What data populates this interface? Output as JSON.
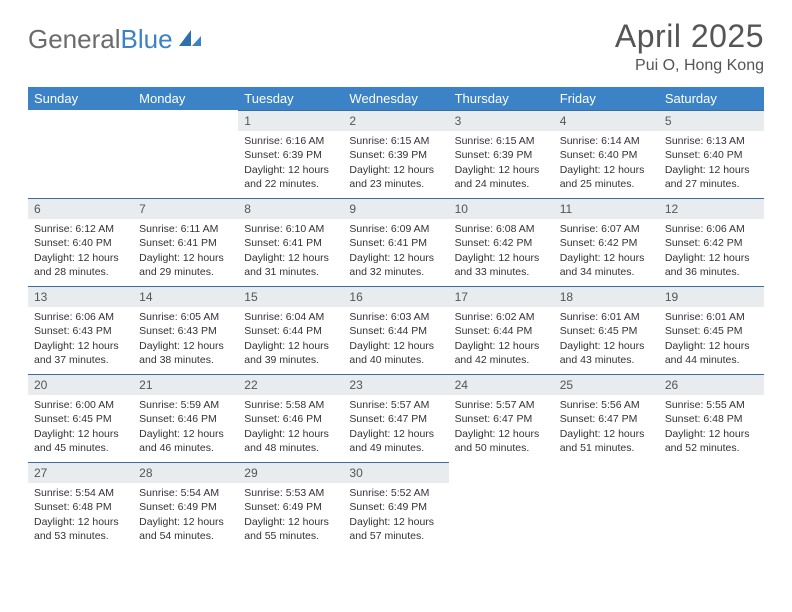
{
  "brand": {
    "part1": "General",
    "part2": "Blue"
  },
  "title": "April 2025",
  "location": "Pui O, Hong Kong",
  "colors": {
    "header_bg": "#3b82c7",
    "header_text": "#ffffff",
    "daynum_bg": "#e8ecef",
    "daynum_border": "#3b6ea0",
    "body_text": "#333333",
    "title_text": "#555555"
  },
  "weekdays": [
    "Sunday",
    "Monday",
    "Tuesday",
    "Wednesday",
    "Thursday",
    "Friday",
    "Saturday"
  ],
  "weeks": [
    [
      null,
      null,
      {
        "n": "1",
        "sr": "Sunrise: 6:16 AM",
        "ss": "Sunset: 6:39 PM",
        "d1": "Daylight: 12 hours",
        "d2": "and 22 minutes."
      },
      {
        "n": "2",
        "sr": "Sunrise: 6:15 AM",
        "ss": "Sunset: 6:39 PM",
        "d1": "Daylight: 12 hours",
        "d2": "and 23 minutes."
      },
      {
        "n": "3",
        "sr": "Sunrise: 6:15 AM",
        "ss": "Sunset: 6:39 PM",
        "d1": "Daylight: 12 hours",
        "d2": "and 24 minutes."
      },
      {
        "n": "4",
        "sr": "Sunrise: 6:14 AM",
        "ss": "Sunset: 6:40 PM",
        "d1": "Daylight: 12 hours",
        "d2": "and 25 minutes."
      },
      {
        "n": "5",
        "sr": "Sunrise: 6:13 AM",
        "ss": "Sunset: 6:40 PM",
        "d1": "Daylight: 12 hours",
        "d2": "and 27 minutes."
      }
    ],
    [
      {
        "n": "6",
        "sr": "Sunrise: 6:12 AM",
        "ss": "Sunset: 6:40 PM",
        "d1": "Daylight: 12 hours",
        "d2": "and 28 minutes."
      },
      {
        "n": "7",
        "sr": "Sunrise: 6:11 AM",
        "ss": "Sunset: 6:41 PM",
        "d1": "Daylight: 12 hours",
        "d2": "and 29 minutes."
      },
      {
        "n": "8",
        "sr": "Sunrise: 6:10 AM",
        "ss": "Sunset: 6:41 PM",
        "d1": "Daylight: 12 hours",
        "d2": "and 31 minutes."
      },
      {
        "n": "9",
        "sr": "Sunrise: 6:09 AM",
        "ss": "Sunset: 6:41 PM",
        "d1": "Daylight: 12 hours",
        "d2": "and 32 minutes."
      },
      {
        "n": "10",
        "sr": "Sunrise: 6:08 AM",
        "ss": "Sunset: 6:42 PM",
        "d1": "Daylight: 12 hours",
        "d2": "and 33 minutes."
      },
      {
        "n": "11",
        "sr": "Sunrise: 6:07 AM",
        "ss": "Sunset: 6:42 PM",
        "d1": "Daylight: 12 hours",
        "d2": "and 34 minutes."
      },
      {
        "n": "12",
        "sr": "Sunrise: 6:06 AM",
        "ss": "Sunset: 6:42 PM",
        "d1": "Daylight: 12 hours",
        "d2": "and 36 minutes."
      }
    ],
    [
      {
        "n": "13",
        "sr": "Sunrise: 6:06 AM",
        "ss": "Sunset: 6:43 PM",
        "d1": "Daylight: 12 hours",
        "d2": "and 37 minutes."
      },
      {
        "n": "14",
        "sr": "Sunrise: 6:05 AM",
        "ss": "Sunset: 6:43 PM",
        "d1": "Daylight: 12 hours",
        "d2": "and 38 minutes."
      },
      {
        "n": "15",
        "sr": "Sunrise: 6:04 AM",
        "ss": "Sunset: 6:44 PM",
        "d1": "Daylight: 12 hours",
        "d2": "and 39 minutes."
      },
      {
        "n": "16",
        "sr": "Sunrise: 6:03 AM",
        "ss": "Sunset: 6:44 PM",
        "d1": "Daylight: 12 hours",
        "d2": "and 40 minutes."
      },
      {
        "n": "17",
        "sr": "Sunrise: 6:02 AM",
        "ss": "Sunset: 6:44 PM",
        "d1": "Daylight: 12 hours",
        "d2": "and 42 minutes."
      },
      {
        "n": "18",
        "sr": "Sunrise: 6:01 AM",
        "ss": "Sunset: 6:45 PM",
        "d1": "Daylight: 12 hours",
        "d2": "and 43 minutes."
      },
      {
        "n": "19",
        "sr": "Sunrise: 6:01 AM",
        "ss": "Sunset: 6:45 PM",
        "d1": "Daylight: 12 hours",
        "d2": "and 44 minutes."
      }
    ],
    [
      {
        "n": "20",
        "sr": "Sunrise: 6:00 AM",
        "ss": "Sunset: 6:45 PM",
        "d1": "Daylight: 12 hours",
        "d2": "and 45 minutes."
      },
      {
        "n": "21",
        "sr": "Sunrise: 5:59 AM",
        "ss": "Sunset: 6:46 PM",
        "d1": "Daylight: 12 hours",
        "d2": "and 46 minutes."
      },
      {
        "n": "22",
        "sr": "Sunrise: 5:58 AM",
        "ss": "Sunset: 6:46 PM",
        "d1": "Daylight: 12 hours",
        "d2": "and 48 minutes."
      },
      {
        "n": "23",
        "sr": "Sunrise: 5:57 AM",
        "ss": "Sunset: 6:47 PM",
        "d1": "Daylight: 12 hours",
        "d2": "and 49 minutes."
      },
      {
        "n": "24",
        "sr": "Sunrise: 5:57 AM",
        "ss": "Sunset: 6:47 PM",
        "d1": "Daylight: 12 hours",
        "d2": "and 50 minutes."
      },
      {
        "n": "25",
        "sr": "Sunrise: 5:56 AM",
        "ss": "Sunset: 6:47 PM",
        "d1": "Daylight: 12 hours",
        "d2": "and 51 minutes."
      },
      {
        "n": "26",
        "sr": "Sunrise: 5:55 AM",
        "ss": "Sunset: 6:48 PM",
        "d1": "Daylight: 12 hours",
        "d2": "and 52 minutes."
      }
    ],
    [
      {
        "n": "27",
        "sr": "Sunrise: 5:54 AM",
        "ss": "Sunset: 6:48 PM",
        "d1": "Daylight: 12 hours",
        "d2": "and 53 minutes."
      },
      {
        "n": "28",
        "sr": "Sunrise: 5:54 AM",
        "ss": "Sunset: 6:49 PM",
        "d1": "Daylight: 12 hours",
        "d2": "and 54 minutes."
      },
      {
        "n": "29",
        "sr": "Sunrise: 5:53 AM",
        "ss": "Sunset: 6:49 PM",
        "d1": "Daylight: 12 hours",
        "d2": "and 55 minutes."
      },
      {
        "n": "30",
        "sr": "Sunrise: 5:52 AM",
        "ss": "Sunset: 6:49 PM",
        "d1": "Daylight: 12 hours",
        "d2": "and 57 minutes."
      },
      null,
      null,
      null
    ]
  ]
}
